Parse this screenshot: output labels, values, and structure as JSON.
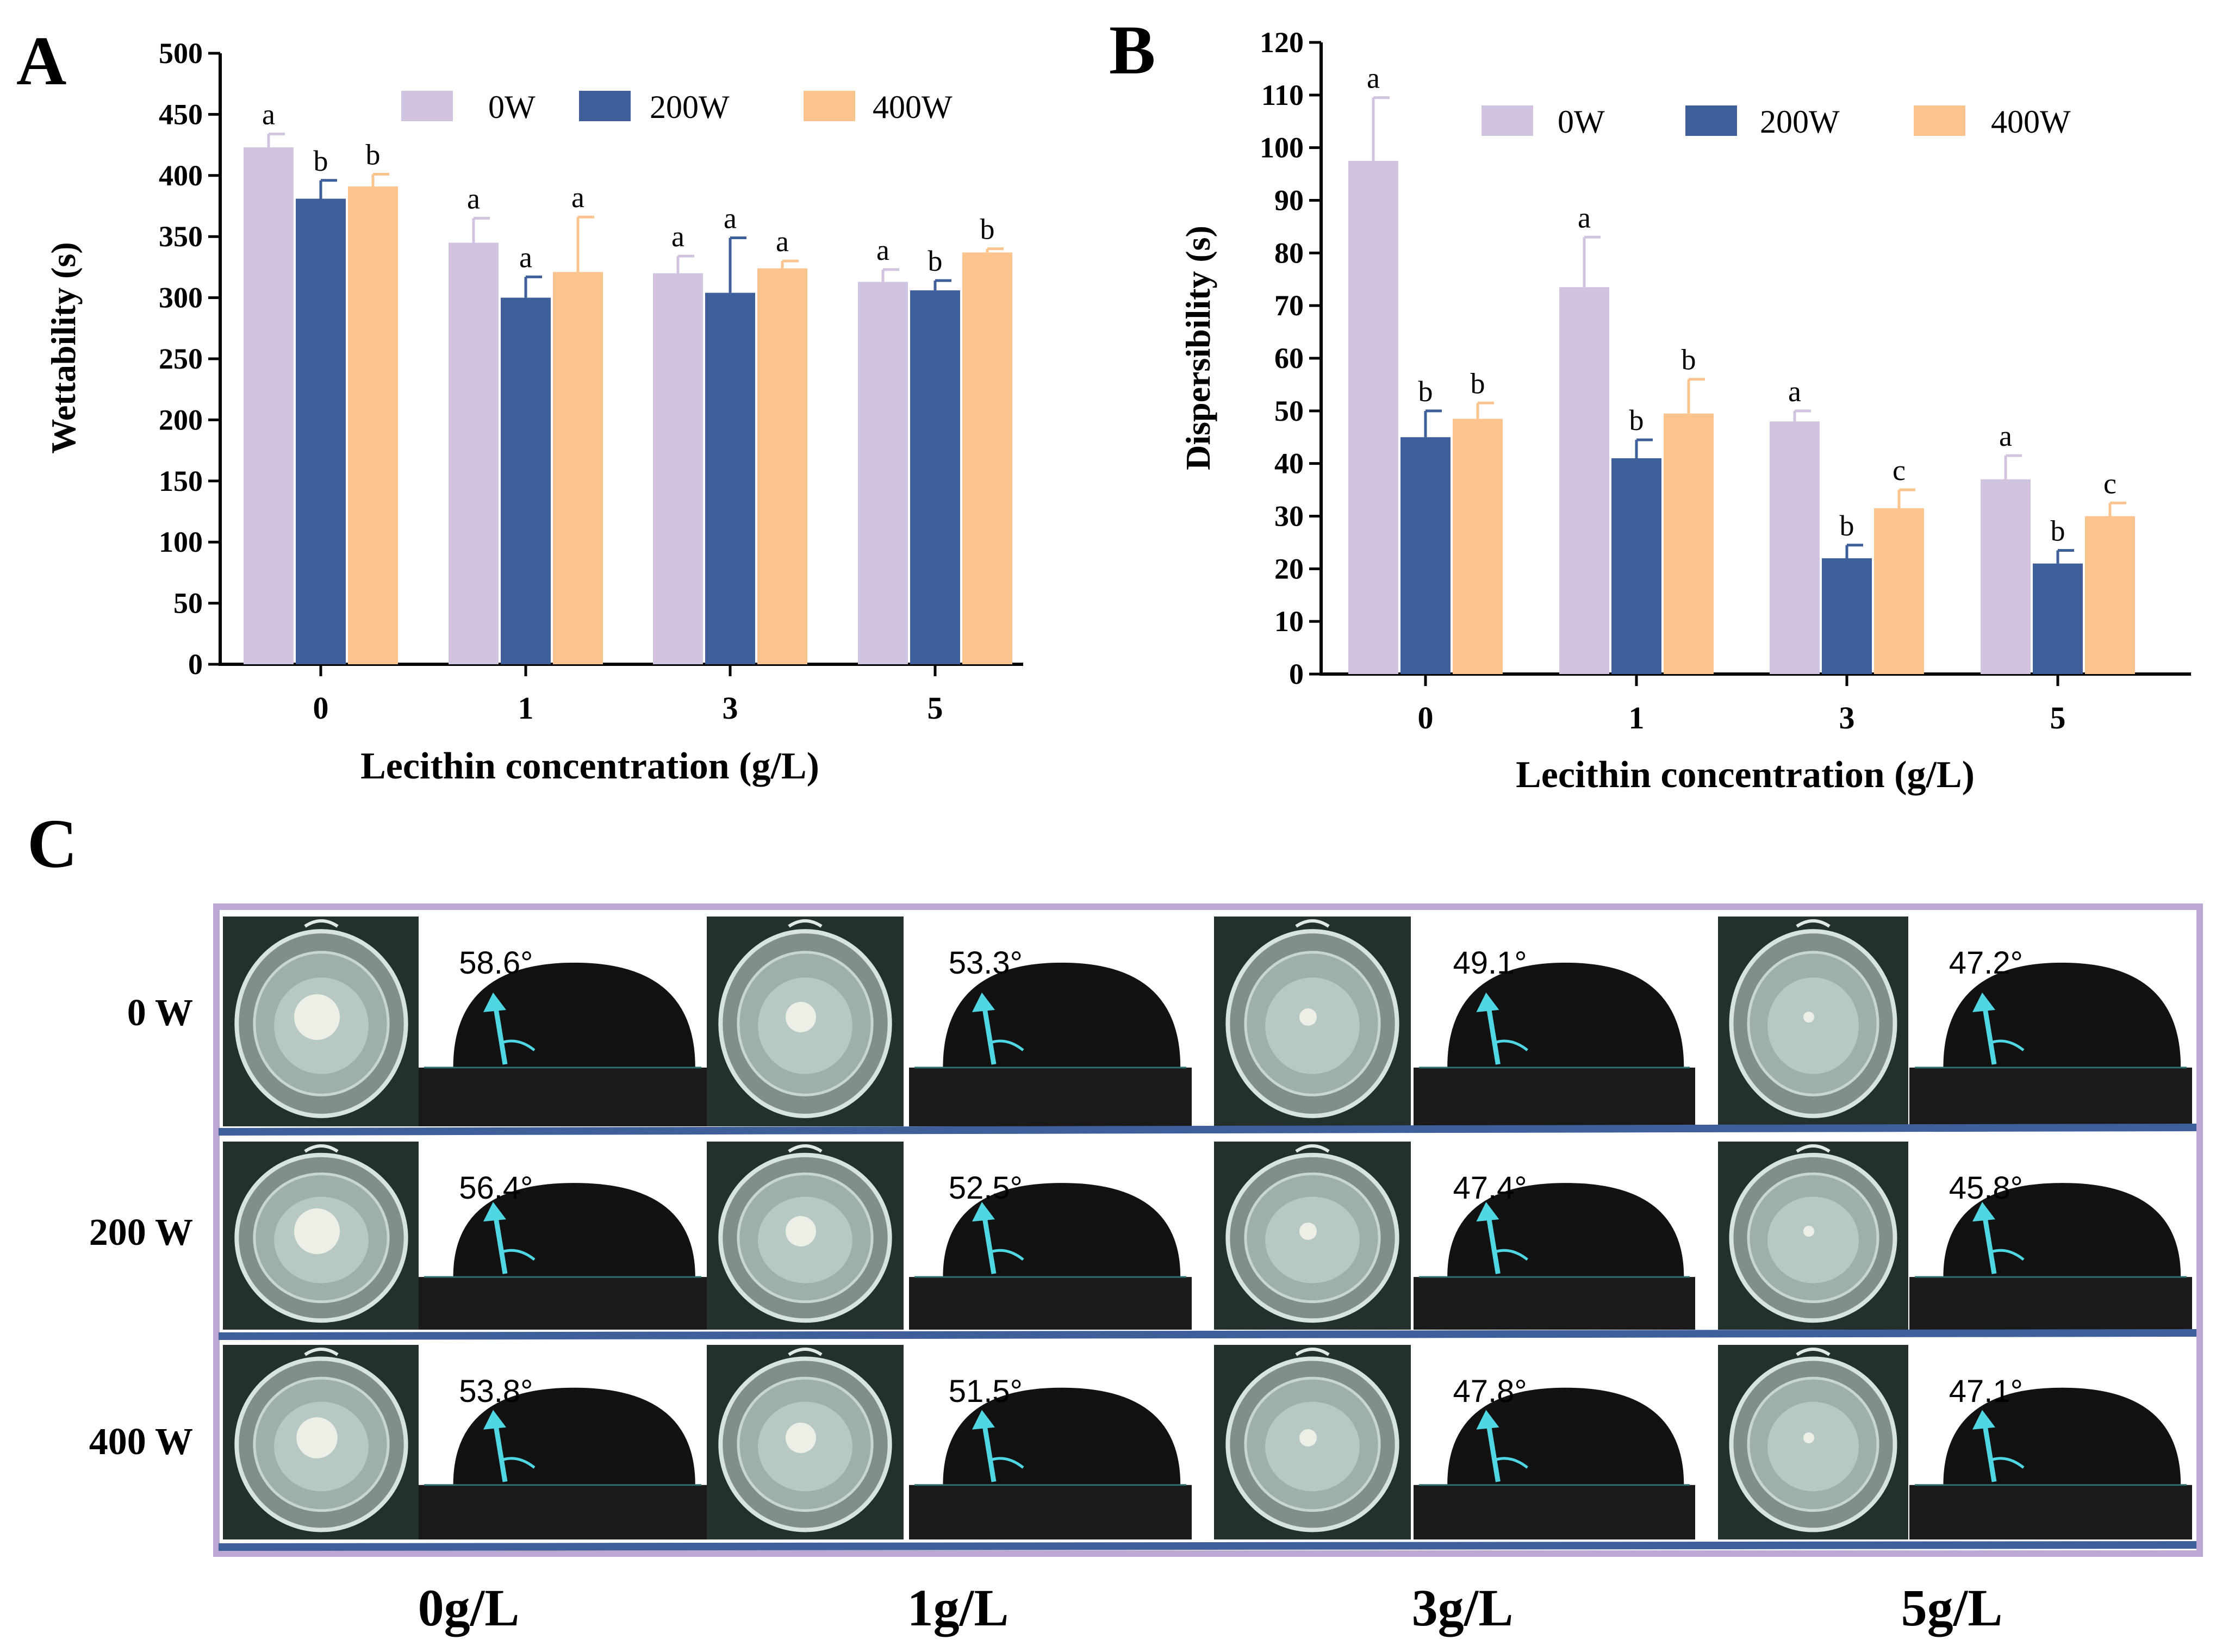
{
  "colors": {
    "s0W": "#d2c4e0",
    "s200W": "#3e5f9a",
    "s400W": "#fbc48f",
    "panel_border": "#bba9d4",
    "row_divider": "#3e5f9a",
    "arrow": "#4fd8e4",
    "drop": "#121212",
    "dish_bg": "#23302e"
  },
  "chart_data": [
    {
      "panel": "A",
      "type": "bar",
      "xlabel": "Lecithin concentration (g/L)",
      "ylabel": "Wettability (s)",
      "categories": [
        "0",
        "1",
        "3",
        "5"
      ],
      "ylim": [
        0,
        500
      ],
      "yticks": [
        "0",
        "50",
        "100",
        "150",
        "200",
        "250",
        "300",
        "350",
        "400",
        "450",
        "500"
      ],
      "legend": "top",
      "series": [
        {
          "name": "0W",
          "color_key": "s0W",
          "values": [
            423,
            345,
            320,
            313
          ],
          "errors": [
            11,
            20,
            14,
            10
          ],
          "letters": [
            "a",
            "a",
            "a",
            "a"
          ]
        },
        {
          "name": "200W",
          "color_key": "s200W",
          "values": [
            381,
            300,
            304,
            306
          ],
          "errors": [
            15,
            17,
            45,
            8
          ],
          "letters": [
            "b",
            "a",
            "a",
            "b"
          ]
        },
        {
          "name": "400W",
          "color_key": "s400W",
          "values": [
            391,
            321,
            324,
            337
          ],
          "errors": [
            10,
            45,
            6,
            3
          ],
          "letters": [
            "b",
            "a",
            "a",
            "b"
          ]
        }
      ]
    },
    {
      "panel": "B",
      "type": "bar",
      "xlabel": "Lecithin concentration (g/L)",
      "ylabel": "Dispersibility (s)",
      "categories": [
        "0",
        "1",
        "3",
        "5"
      ],
      "ylim": [
        0,
        120
      ],
      "yticks": [
        "0",
        "10",
        "20",
        "30",
        "40",
        "50",
        "60",
        "70",
        "80",
        "90",
        "100",
        "110",
        "120"
      ],
      "legend": "top",
      "series": [
        {
          "name": "0W",
          "color_key": "s0W",
          "values": [
            97.5,
            73.5,
            48,
            37
          ],
          "errors": [
            12,
            9.5,
            2,
            4.5
          ],
          "letters": [
            "a",
            "a",
            "a",
            "a"
          ]
        },
        {
          "name": "200W",
          "color_key": "s200W",
          "values": [
            45,
            41,
            22,
            21
          ],
          "errors": [
            5,
            3.5,
            2.5,
            2.5
          ],
          "letters": [
            "b",
            "b",
            "b",
            "b"
          ]
        },
        {
          "name": "400W",
          "color_key": "s400W",
          "values": [
            48.5,
            49.5,
            31.5,
            30
          ],
          "errors": [
            3,
            6.5,
            3.5,
            2.5
          ],
          "letters": [
            "b",
            "b",
            "c",
            "c"
          ]
        }
      ]
    }
  ],
  "panel_labels": {
    "a": "A",
    "b": "B",
    "c": "C"
  },
  "photo_grid": {
    "rows": [
      "0 W",
      "200 W",
      "400 W"
    ],
    "columns": [
      "0g/L",
      "1g/L",
      "3g/L",
      "5g/L"
    ],
    "angles": [
      [
        "58.6°",
        "53.3°",
        "49.1°",
        "47.2°"
      ],
      [
        "56.4°",
        "52.5°",
        "47.4°",
        "45.8°"
      ],
      [
        "53.8°",
        "51.5°",
        "47.8°",
        "47.1°"
      ]
    ]
  }
}
